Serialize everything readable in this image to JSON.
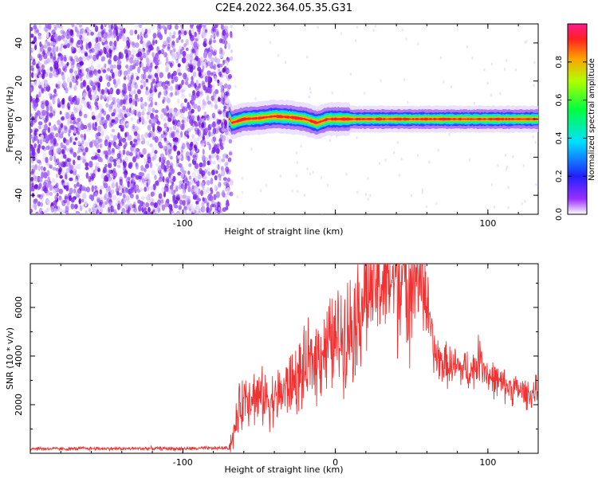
{
  "figure_title": "C2E4.2022.364.05.35.G31",
  "colors": {
    "snr_line": "#f03232",
    "scatter_main": "#7a1ee6",
    "axis": "#000000"
  },
  "chart_data": [
    {
      "type": "heatmap",
      "title": "C2E4.2022.364.05.35.G31",
      "xlabel": "Height of straight line (km)",
      "ylabel": "Frequency (Hz)",
      "xlim": [
        -200,
        133
      ],
      "ylim": [
        -50,
        50
      ],
      "xticks": [
        -100,
        0,
        100
      ],
      "xtick_labels": [
        "-100",
        "",
        "100"
      ],
      "yticks": [
        -40,
        -20,
        0,
        20,
        40
      ],
      "colorbar": {
        "label": "Normalized spectral amplitude",
        "range": [
          0,
          1
        ],
        "ticks": [
          0.0,
          0.2,
          0.4,
          0.6,
          0.8
        ],
        "tick_labels": [
          "0.0",
          "0.2",
          "0.4",
          "0.6",
          "0.8"
        ],
        "colormap": "rainbow"
      },
      "grid": false,
      "features": {
        "noise_region_x": [
          -200,
          -68
        ],
        "signal_onset_x": -70,
        "center_frequency_trace": [
          [
            -68,
            -2
          ],
          [
            -60,
            0
          ],
          [
            -50,
            0.5
          ],
          [
            -40,
            1.5
          ],
          [
            -30,
            1
          ],
          [
            -20,
            0
          ],
          [
            -12,
            -2
          ],
          [
            -5,
            0
          ],
          [
            0,
            0
          ],
          [
            50,
            0
          ],
          [
            100,
            0
          ],
          [
            133,
            0
          ]
        ]
      }
    },
    {
      "type": "line",
      "title": "",
      "xlabel": "Height of straight line (km)",
      "ylabel": "SNR (10 * v/v)",
      "xlim": [
        -200,
        133
      ],
      "ylim": [
        0,
        7800
      ],
      "xticks": [
        -100,
        0,
        100
      ],
      "xtick_labels": [
        "-100",
        "0",
        "100"
      ],
      "yticks": [
        2000,
        4000,
        6000
      ],
      "grid": false,
      "series": [
        {
          "x": [
            -200,
            -180,
            -160,
            -140,
            -120,
            -100,
            -80,
            -70,
            -67,
            -63,
            -58,
            -50,
            -40,
            -30,
            -20,
            -10,
            0,
            10,
            20,
            30,
            40,
            50,
            58,
            61,
            65,
            70,
            80,
            90,
            95,
            100,
            110,
            120,
            128,
            133
          ],
          "y": [
            200,
            180,
            200,
            190,
            200,
            190,
            210,
            220,
            700,
            1800,
            2500,
            2300,
            2200,
            2800,
            3400,
            4200,
            4600,
            5200,
            6600,
            7100,
            7300,
            7400,
            7300,
            5700,
            4100,
            3700,
            3500,
            3400,
            4000,
            3200,
            2800,
            2600,
            2400,
            2600
          ]
        }
      ]
    }
  ]
}
